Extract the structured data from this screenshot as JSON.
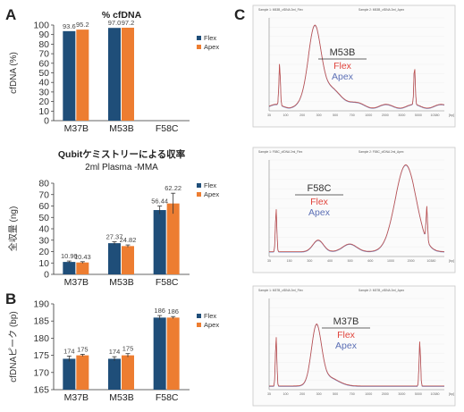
{
  "palette": {
    "flex": "#1f4e79",
    "apex": "#ed7d31",
    "trace": "#c0504d",
    "trace_blue": "#5b6fb5",
    "axis": "#333333",
    "grid": "#d9d9d9"
  },
  "panel_labels": {
    "a": "A",
    "b": "B",
    "c": "C"
  },
  "chart_data": [
    {
      "id": "a1",
      "type": "bar",
      "title": "% cfDNA",
      "subtitle": "",
      "ylabel": "cfDNA (%)",
      "ylim": [
        0,
        100
      ],
      "yticks": [
        0,
        10,
        20,
        30,
        40,
        50,
        60,
        70,
        80,
        90,
        100
      ],
      "categories": [
        "M37B",
        "M53B",
        "F58C"
      ],
      "series": [
        {
          "name": "Flex",
          "values": [
            93.6,
            97.0,
            null
          ],
          "labels": [
            "93.6",
            "97.0",
            ""
          ]
        },
        {
          "name": "Apex",
          "values": [
            95.2,
            97.2,
            null
          ],
          "labels": [
            "95.2",
            "97.2",
            ""
          ]
        }
      ],
      "legend": "right"
    },
    {
      "id": "a2",
      "type": "bar",
      "title": "Qubitケミストリーによる収率",
      "subtitle": "2ml Plasma -MMA",
      "ylabel": "全収量 (ng)",
      "ylim": [
        0,
        80
      ],
      "yticks": [
        0,
        10,
        20,
        30,
        40,
        50,
        60,
        70,
        80
      ],
      "categories": [
        "M37B",
        "M53B",
        "F58C"
      ],
      "series": [
        {
          "name": "Flex",
          "values": [
            10.9,
            27.37,
            56.44
          ],
          "labels": [
            "10.90",
            "27.37",
            "56.44"
          ],
          "errors": [
            0.8,
            1.2,
            3.5
          ]
        },
        {
          "name": "Apex",
          "values": [
            10.43,
            24.82,
            62.22
          ],
          "labels": [
            "10.43",
            "24.82",
            "62.22"
          ],
          "errors": [
            0.7,
            1.0,
            9.0
          ]
        }
      ],
      "legend": "right"
    },
    {
      "id": "b",
      "type": "bar",
      "title": "",
      "subtitle": "",
      "ylabel": "cfDNAピーク (bp)",
      "ylim": [
        165,
        190
      ],
      "yticks": [
        165,
        170,
        175,
        180,
        185,
        190
      ],
      "categories": [
        "M37B",
        "M53B",
        "F58C"
      ],
      "series": [
        {
          "name": "Flex",
          "values": [
            174,
            174,
            186
          ],
          "labels": [
            "174",
            "174",
            "186"
          ],
          "errors": [
            0.8,
            0.6,
            0.6
          ]
        },
        {
          "name": "Apex",
          "values": [
            175,
            175,
            186
          ],
          "labels": [
            "175",
            "175",
            "186"
          ],
          "errors": [
            0.3,
            0.5,
            0.3
          ]
        }
      ],
      "legend": "right"
    }
  ],
  "panel_c": [
    {
      "id": "c1",
      "sample": "M53B",
      "flex": "Flex",
      "apex": "Apex",
      "xticks": [
        "35",
        "100",
        "200",
        "300",
        "500",
        "700",
        "1000",
        "2000",
        "3000",
        "5000",
        "10380",
        "[bp]"
      ],
      "header": [
        "Sample 1: M53B_cfDNA 2ml_Flex",
        "Sample 2: M53B_cfDNA 2ml_Apex"
      ]
    },
    {
      "id": "c2",
      "sample": "F58C",
      "flex": "Flex",
      "apex": "Apex",
      "xticks": [
        "35",
        "150",
        "300",
        "400",
        "500",
        "600",
        "1000",
        "2000",
        "10380",
        "[bp]"
      ],
      "header": [
        "Sample 1: F58C_cfDNA 2ml_Flex",
        "Sample 2: F58C_cfDNA 2ml_Apex"
      ]
    },
    {
      "id": "c3",
      "sample": "M37B",
      "flex": "Flex",
      "apex": "Apex",
      "xticks": [
        "35",
        "100",
        "200",
        "300",
        "500",
        "700",
        "1000",
        "2000",
        "3000",
        "5000",
        "10380",
        "[bp]"
      ],
      "header": [
        "Sample 1: M37B_cfDNA 2ml_Flex",
        "Sample 2: M37B_cfDNA 2ml_Apex"
      ]
    }
  ]
}
